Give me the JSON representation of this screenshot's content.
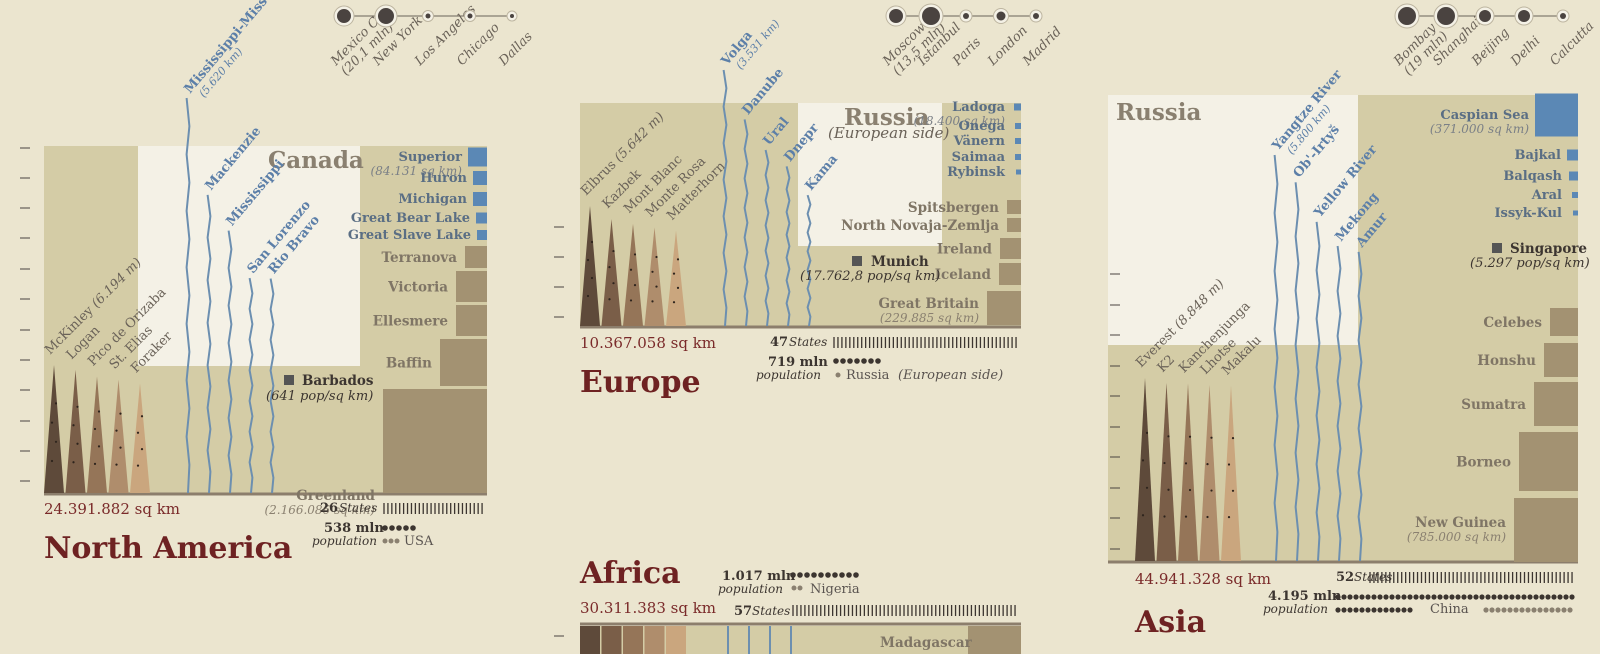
{
  "colors": {
    "background": "#ebe5cf",
    "landmass": "#d4cca6",
    "country": "#f4f1e6",
    "river": "#6c8fb0",
    "lake": "#5b88b5",
    "island": "#a39272",
    "title": "#6e2222",
    "mtn": [
      "#5e4a3a",
      "#7a5e48",
      "#957558",
      "#af8d6c",
      "#caa67e"
    ]
  },
  "chart_data": [
    {
      "type": "infographic",
      "continent": "North America",
      "area": "24.391.882 sq km",
      "largest_country": "Canada",
      "mountains": [
        {
          "name": "McKinley",
          "detail": "(6.194 m)",
          "height": 6194
        },
        {
          "name": "Logan",
          "height": 5959
        },
        {
          "name": "Pico de Orizaba",
          "height": 5636
        },
        {
          "name": "St. Elias",
          "height": 5489
        },
        {
          "name": "Foraker",
          "height": 5304
        }
      ],
      "rivers": [
        {
          "name": "Mississippi-Missouri",
          "detail": "(5.620 km)",
          "length": 5620
        },
        {
          "name": "Mackenzie",
          "length": 4241
        },
        {
          "name": "Mississippi",
          "length": 3734
        },
        {
          "name": "San Lorenzo",
          "length": 3058
        },
        {
          "name": "Rio Bravo",
          "length": 3051
        }
      ],
      "lakes": [
        {
          "name": "Superior",
          "detail": "(84.131 sq km)"
        },
        {
          "name": "Huron"
        },
        {
          "name": "Michigan"
        },
        {
          "name": "Great Bear Lake"
        },
        {
          "name": "Great Slave Lake"
        }
      ],
      "islands": [
        {
          "name": "Terranova"
        },
        {
          "name": "Victoria"
        },
        {
          "name": "Ellesmere"
        },
        {
          "name": "Baffin"
        },
        {
          "name": "Greenland",
          "detail": "(2.166.086 sq km)"
        }
      ],
      "densest": {
        "name": "Barbados",
        "detail": "(641 pop/sq km)"
      },
      "cities": [
        {
          "name": "Mexico City",
          "detail": "(20,1 mln)"
        },
        {
          "name": "New York"
        },
        {
          "name": "Los Angeles"
        },
        {
          "name": "Chicago"
        },
        {
          "name": "Dallas"
        }
      ],
      "states": {
        "count": "26",
        "label": "States",
        "value": 26
      },
      "population": {
        "value": "538 mln",
        "label": "population",
        "dots": 5,
        "country": "USA",
        "country_dots": 3
      }
    },
    {
      "type": "infographic",
      "continent": "Europe",
      "area": "10.367.058 sq km",
      "largest_country": "Russia",
      "largest_country_sub": "(European side)",
      "mountains": [
        {
          "name": "Elbrus",
          "detail": "(5.642 m)",
          "height": 5642
        },
        {
          "name": "Kazbek",
          "height": 5033
        },
        {
          "name": "Mont Blanc",
          "height": 4808
        },
        {
          "name": "Monte Rosa",
          "height": 4634
        },
        {
          "name": "Matterhorn",
          "height": 4478
        }
      ],
      "rivers": [
        {
          "name": "Volga",
          "detail": "(3.531 km)",
          "length": 3531
        },
        {
          "name": "Danube",
          "length": 2850
        },
        {
          "name": "Ural",
          "length": 2428
        },
        {
          "name": "Dnepr",
          "length": 2201
        },
        {
          "name": "Kama",
          "length": 1805
        }
      ],
      "lakes": [
        {
          "name": "Ladoga",
          "detail": "(18.400 sq km)"
        },
        {
          "name": "Onega"
        },
        {
          "name": "Vänern"
        },
        {
          "name": "Saimaa"
        },
        {
          "name": "Rybinsk"
        }
      ],
      "islands": [
        {
          "name": "Spitsbergen"
        },
        {
          "name": "North Novaja-Zemlja"
        },
        {
          "name": "Ireland"
        },
        {
          "name": "Iceland"
        },
        {
          "name": "Great Britain",
          "detail": "(229.885 sq km)"
        }
      ],
      "densest": {
        "name": "Munich",
        "detail": "(17.762,8 pop/sq km)"
      },
      "cities": [
        {
          "name": "Moscow",
          "detail": "(13,5 mln)"
        },
        {
          "name": "Istanbul"
        },
        {
          "name": "Paris"
        },
        {
          "name": "London"
        },
        {
          "name": "Madrid"
        }
      ],
      "states": {
        "count": "47",
        "label": "States",
        "value": 47
      },
      "population": {
        "value": "719 mln",
        "label": "population",
        "dots": 7,
        "country": "Russia",
        "country_sub": "(European side)",
        "country_dots": 1
      }
    },
    {
      "type": "infographic",
      "continent": "Africa",
      "area": "30.311.383 sq km",
      "island_visible": "Madagascar",
      "states": {
        "count": "57",
        "label": "States",
        "value": 57
      },
      "population": {
        "value": "1.017 mln",
        "label": "population",
        "dots": 10,
        "country": "Nigeria",
        "country_dots": 2
      }
    },
    {
      "type": "infographic",
      "continent": "Asia",
      "area": "44.941.328 sq km",
      "largest_country": "Russia",
      "mountains": [
        {
          "name": "Everest",
          "detail": "(8.848 m)",
          "height": 8848
        },
        {
          "name": "K2",
          "height": 8611
        },
        {
          "name": "Kanchenjunga",
          "height": 8586
        },
        {
          "name": "Lhotse",
          "height": 8516
        },
        {
          "name": "Makalu",
          "height": 8485
        }
      ],
      "rivers": [
        {
          "name": "Yangtze River",
          "detail": "(5.800 km)",
          "length": 5800
        },
        {
          "name": "Ob'-Irtyš",
          "length": 5410
        },
        {
          "name": "Yellow River",
          "length": 4845
        },
        {
          "name": "Mekong",
          "length": 4500
        },
        {
          "name": "Amur",
          "length": 4416
        }
      ],
      "lakes": [
        {
          "name": "Caspian Sea",
          "detail": "(371.000 sq km)"
        },
        {
          "name": "Bajkal"
        },
        {
          "name": "Balqash"
        },
        {
          "name": "Aral"
        },
        {
          "name": "Issyk-Kul"
        }
      ],
      "islands": [
        {
          "name": "Celebes"
        },
        {
          "name": "Honshu"
        },
        {
          "name": "Sumatra"
        },
        {
          "name": "Borneo"
        },
        {
          "name": "New Guinea",
          "detail": "(785.000 sq km)"
        }
      ],
      "densest": {
        "name": "Singapore",
        "detail": "(5.297 pop/sq km)"
      },
      "cities": [
        {
          "name": "Bombay",
          "detail": "(19 mln)"
        },
        {
          "name": "Shanghai"
        },
        {
          "name": "Beijing"
        },
        {
          "name": "Delhi"
        },
        {
          "name": "Calcutta"
        }
      ],
      "states": {
        "count": "52",
        "label": "States",
        "value": 52
      },
      "population": {
        "value": "4.195 mln",
        "label": "population",
        "dots": 40,
        "country": "China",
        "country_dots": 13
      }
    }
  ]
}
